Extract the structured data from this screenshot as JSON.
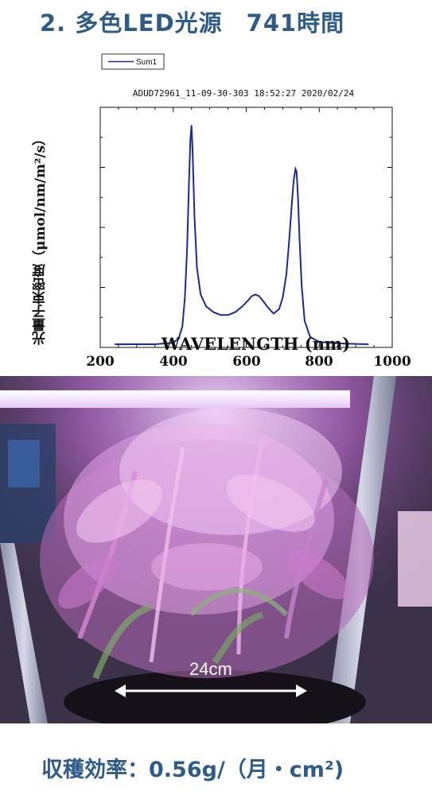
{
  "title": "2. 多色LED光源　741時間",
  "chart_data": {
    "type": "line",
    "title": "ADUD72961_11-09-30-303 18:52:27  2020/02/24",
    "xlabel": "WAVELENGTH (nm)",
    "ylabel": "光量子束密度（μmol/nm/m²/s）",
    "xlim": [
      200,
      1000
    ],
    "xticks": [
      "200",
      "400",
      "600",
      "800",
      "1000"
    ],
    "grid": false,
    "legend": "top-left",
    "color": "#1a2a9a",
    "series": [
      {
        "name": "Sum1",
        "x": [
          240,
          300,
          350,
          400,
          415,
          425,
          432,
          438,
          443,
          447,
          450,
          453,
          458,
          465,
          475,
          490,
          510,
          530,
          550,
          570,
          590,
          605,
          615,
          625,
          635,
          645,
          660,
          675,
          690,
          700,
          710,
          718,
          725,
          730,
          735,
          738,
          742,
          746,
          752,
          760,
          775,
          800,
          850,
          900,
          935
        ],
        "y": [
          0.0,
          0.0,
          0.0,
          0.005,
          0.02,
          0.06,
          0.16,
          0.33,
          0.55,
          0.7,
          0.75,
          0.66,
          0.44,
          0.26,
          0.17,
          0.13,
          0.11,
          0.1,
          0.1,
          0.11,
          0.13,
          0.15,
          0.165,
          0.17,
          0.165,
          0.15,
          0.125,
          0.105,
          0.12,
          0.16,
          0.24,
          0.36,
          0.48,
          0.56,
          0.6,
          0.59,
          0.5,
          0.36,
          0.2,
          0.08,
          0.025,
          0.008,
          0.003,
          0.001,
          0.0
        ]
      }
    ]
  },
  "photo": {
    "measurement_label": "24cm"
  },
  "footer": "収穫効率：0.56g/（月・cm²)"
}
